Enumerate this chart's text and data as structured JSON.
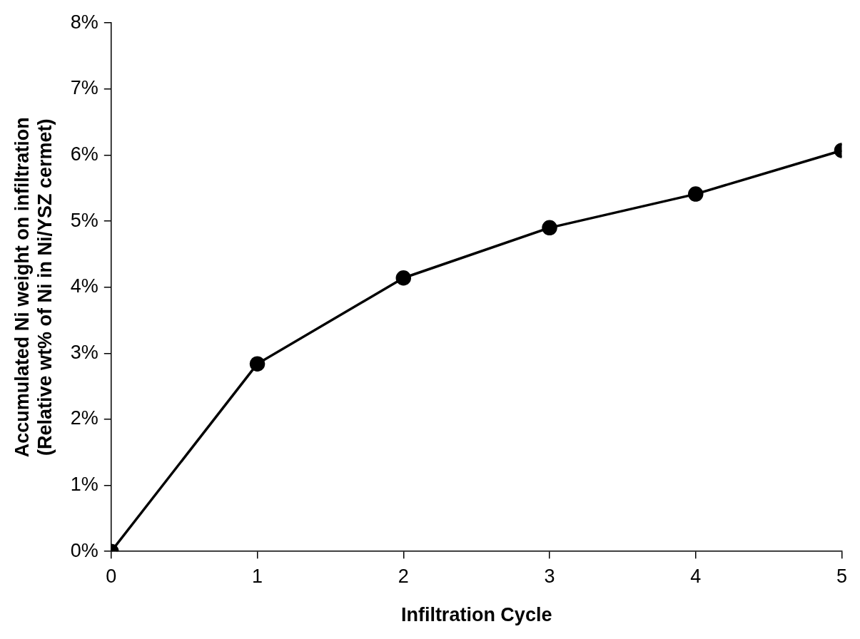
{
  "chart_data": {
    "type": "line",
    "xlabel": "Infiltration Cycle",
    "ylabel": "Accumulated Ni weight on infiltration\n(Relative wt% of Ni in Ni/YSZ cermet)",
    "x": [
      0,
      1,
      2,
      3,
      4,
      5
    ],
    "series": [
      {
        "color": "#000000",
        "values": [
          0,
          2.84,
          4.14,
          4.9,
          5.41,
          6.07
        ]
      }
    ],
    "xlim": [
      0,
      5
    ],
    "xticks": [
      0,
      1,
      2,
      3,
      4,
      5
    ],
    "ylim": [
      0,
      8
    ],
    "yticks": [
      {
        "value": 0,
        "label": "0%"
      },
      {
        "value": 1,
        "label": "1%"
      },
      {
        "value": 2,
        "label": "2%"
      },
      {
        "value": 3,
        "label": "3%"
      },
      {
        "value": 4,
        "label": "4%"
      },
      {
        "value": 5,
        "label": "5%"
      },
      {
        "value": 6,
        "label": "6%"
      },
      {
        "value": 7,
        "label": "7%"
      },
      {
        "value": 8,
        "label": "8%"
      }
    ],
    "grid": false,
    "legend": false,
    "marker": "circle",
    "line_style": "solid"
  }
}
